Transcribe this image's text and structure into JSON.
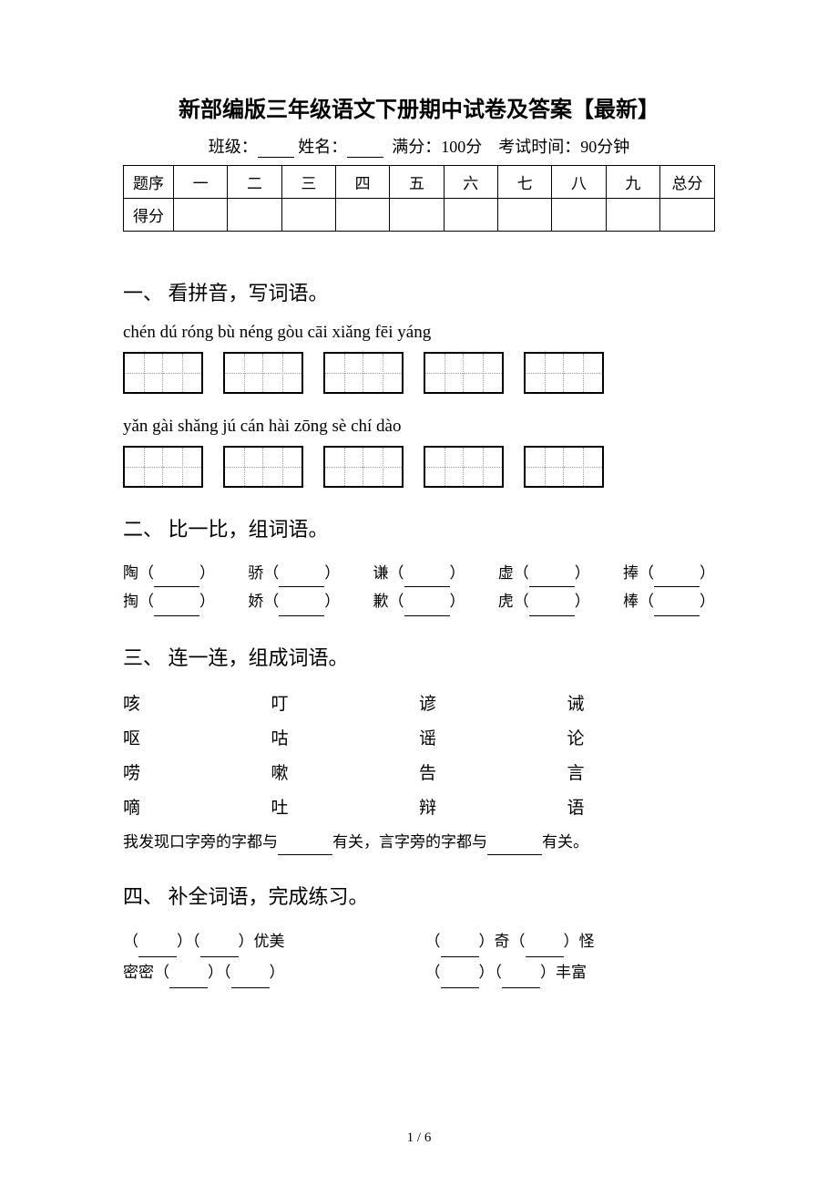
{
  "title": "新部编版三年级语文下册期中试卷及答案【最新】",
  "info": {
    "class_label": "班级：",
    "name_label": "姓名：",
    "fullscore": "满分：100分",
    "time": "考试时间：90分钟"
  },
  "score_table": {
    "row1": [
      "题序",
      "一",
      "二",
      "三",
      "四",
      "五",
      "六",
      "七",
      "八",
      "九",
      "总分"
    ],
    "row2_label": "得分"
  },
  "section1": {
    "heading": "一、 看拼音，写词语。",
    "pinyin_row1": "chén  dú    róng bù    néng gòu   cāi  xiǎng    fēi  yáng",
    "pinyin_row2": "yǎn  gài   shǎng jú    cán  hài   zōng sè     chí  dào"
  },
  "section2": {
    "heading": "二、 比一比，组词语。",
    "row1": [
      "陶",
      "骄",
      "谦",
      "虚",
      "捧"
    ],
    "row2": [
      "掏",
      "娇",
      "歉",
      "虎",
      "棒"
    ]
  },
  "section3": {
    "heading": "三、 连一连，组成词语。",
    "rows": [
      [
        "咳",
        "叮",
        "谚",
        "诫"
      ],
      [
        "呕",
        "咕",
        "谣",
        "论"
      ],
      [
        "唠",
        "嗽",
        "告",
        "言"
      ],
      [
        "嘀",
        "吐",
        "辩",
        "语"
      ]
    ],
    "discover": {
      "prefix": "我发现口字旁的字都与",
      "middle": "有关，言字旁的字都与",
      "suffix": "有关。"
    }
  },
  "section4": {
    "heading": "四、 补全词语，完成练习。",
    "items": {
      "r1c1_suffix": "优美",
      "r1c2_mid1": "奇",
      "r1c2_suffix": "怪",
      "r2c1_prefix": "密密",
      "r2c2_suffix": "丰富"
    }
  },
  "page_number": "1 / 6"
}
